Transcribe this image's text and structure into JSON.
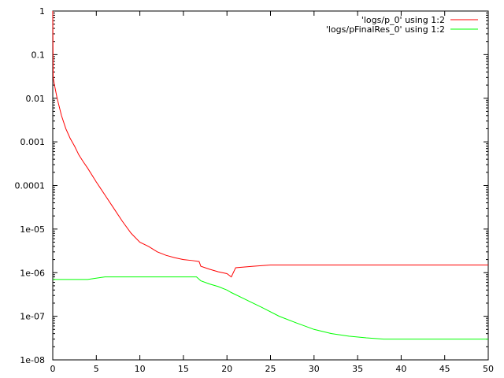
{
  "chart_data": {
    "type": "line",
    "title": "",
    "xlabel": "",
    "ylabel": "",
    "xlim": [
      0,
      50
    ],
    "ylim": [
      1e-08,
      1
    ],
    "yscale": "log",
    "grid": false,
    "legend_position": "top-right",
    "x_ticks": [
      {
        "value": 0,
        "label": "0"
      },
      {
        "value": 5,
        "label": "5"
      },
      {
        "value": 10,
        "label": "10"
      },
      {
        "value": 15,
        "label": "15"
      },
      {
        "value": 20,
        "label": "20"
      },
      {
        "value": 25,
        "label": "25"
      },
      {
        "value": 30,
        "label": "30"
      },
      {
        "value": 35,
        "label": "35"
      },
      {
        "value": 40,
        "label": "40"
      },
      {
        "value": 45,
        "label": "45"
      },
      {
        "value": 50,
        "label": "50"
      }
    ],
    "y_ticks": [
      {
        "value": 1,
        "label": "1"
      },
      {
        "value": 0.1,
        "label": "0.1"
      },
      {
        "value": 0.01,
        "label": "0.01"
      },
      {
        "value": 0.001,
        "label": "0.001"
      },
      {
        "value": 0.0001,
        "label": "0.0001"
      },
      {
        "value": 1e-05,
        "label": "1e-05"
      },
      {
        "value": 1e-06,
        "label": "1e-06"
      },
      {
        "value": 1e-07,
        "label": "1e-07"
      },
      {
        "value": 1e-08,
        "label": "1e-08"
      }
    ],
    "series": [
      {
        "name": "'logs/p_0' using 1:2",
        "color": "#ff0000",
        "x": [
          0,
          0.05,
          0.2,
          0.5,
          1,
          1.5,
          2,
          2.5,
          3,
          3.5,
          4,
          5,
          6,
          7,
          8,
          9,
          10,
          11,
          12,
          13,
          14,
          15,
          16,
          16.8,
          17,
          18,
          19,
          20,
          20.5,
          21,
          23,
          25,
          30,
          35,
          40,
          45,
          50
        ],
        "y": [
          1,
          0.03,
          0.02,
          0.01,
          0.004,
          0.002,
          0.0012,
          0.0008,
          0.0005,
          0.00035,
          0.00025,
          0.00012,
          6e-05,
          3e-05,
          1.5e-05,
          8e-06,
          5e-06,
          4e-06,
          3e-06,
          2.5e-06,
          2.2e-06,
          2e-06,
          1.9e-06,
          1.8e-06,
          1.4e-06,
          1.2e-06,
          1.05e-06,
          9.5e-07,
          8e-07,
          1.3e-06,
          1.4e-06,
          1.5e-06,
          1.5e-06,
          1.5e-06,
          1.5e-06,
          1.5e-06,
          1.5e-06
        ]
      },
      {
        "name": "'logs/pFinalRes_0' using 1:2",
        "color": "#00ff00",
        "x": [
          0,
          2,
          4,
          6,
          8,
          10,
          12,
          14,
          16,
          16.5,
          17,
          18,
          19,
          20,
          20.5,
          22,
          24,
          26,
          28,
          30,
          32,
          34,
          36,
          38,
          40,
          45,
          50
        ],
        "y": [
          7e-07,
          7e-07,
          7e-07,
          8e-07,
          8e-07,
          8e-07,
          8e-07,
          8e-07,
          8e-07,
          8e-07,
          6.5e-07,
          5.5e-07,
          4.8e-07,
          4e-07,
          3.5e-07,
          2.5e-07,
          1.6e-07,
          1e-07,
          7e-08,
          5e-08,
          4e-08,
          3.5e-08,
          3.2e-08,
          3e-08,
          3e-08,
          3e-08,
          3e-08
        ]
      }
    ]
  }
}
